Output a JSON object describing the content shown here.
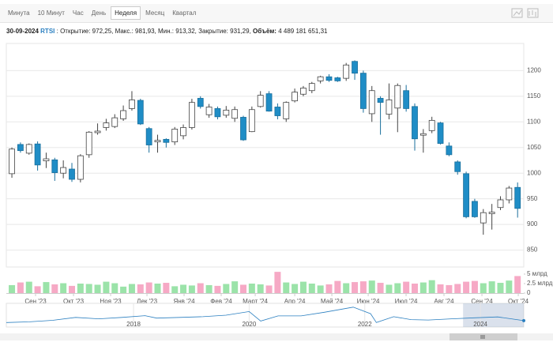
{
  "toolbar": {
    "tabs": [
      "Минута",
      "10 Минут",
      "Час",
      "День",
      "Неделя",
      "Месяц",
      "Квартал"
    ],
    "active_tab": 4
  },
  "info": {
    "date": "30-09-2024",
    "symbol": "RTSI",
    "details": ": Открытие: 972,25, Макс.: 981,93, Мин.: 913,32, Закрытие: 931,29,",
    "volume_label": "Объём:",
    "volume": "4 489 181 651,31"
  },
  "chart_data": [
    {
      "type": "candlestick",
      "categories": [
        null,
        null,
        null,
        null,
        null,
        null,
        null,
        null,
        null,
        null,
        null,
        null,
        null,
        null,
        null,
        null,
        null,
        null,
        null,
        null,
        null,
        null,
        null,
        null,
        null,
        null,
        null,
        null,
        null,
        null,
        null,
        null,
        null,
        null,
        null,
        null,
        null,
        null,
        null,
        null,
        null,
        null,
        null,
        null,
        null,
        null,
        null,
        null,
        null,
        null,
        null,
        null,
        null,
        null,
        null,
        null,
        null,
        null,
        null,
        null
      ],
      "open": [
        999,
        1056,
        1039,
        1057,
        1024,
        1026,
        1000,
        1008,
        988,
        1036,
        1079,
        1089,
        1091,
        1106,
        1126,
        1142,
        1087,
        1061,
        1066,
        1061,
        1073,
        1089,
        1146,
        1114,
        1126,
        1113,
        1107,
        1109,
        1081,
        1130,
        1155,
        1129,
        1106,
        1141,
        1154,
        1161,
        1180,
        1188,
        1186,
        1185,
        1218,
        1195,
        1116,
        1146,
        1115,
        1127,
        1161,
        1130,
        1074,
        1083,
        1098,
        1053,
        1022,
        999,
        945,
        903,
        921,
        933,
        948,
        972.25
      ],
      "high": [
        1050,
        1060,
        1058,
        1062,
        1040,
        1030,
        1025,
        1020,
        1037,
        1082,
        1097,
        1106,
        1115,
        1132,
        1160,
        1145,
        1090,
        1075,
        1068,
        1090,
        1095,
        1145,
        1150,
        1135,
        1130,
        1131,
        1130,
        1112,
        1130,
        1160,
        1160,
        1136,
        1140,
        1165,
        1170,
        1178,
        1190,
        1193,
        1188,
        1215,
        1220,
        1200,
        1170,
        1150,
        1175,
        1175,
        1172,
        1136,
        1086,
        1110,
        1100,
        1060,
        1025,
        1003,
        950,
        930,
        940,
        955,
        975,
        981.93
      ],
      "low": [
        991,
        1040,
        1036,
        1005,
        1010,
        985,
        990,
        983,
        982,
        1030,
        1075,
        1083,
        1088,
        1102,
        1122,
        1094,
        1040,
        1040,
        1050,
        1055,
        1066,
        1085,
        1126,
        1108,
        1105,
        1108,
        1100,
        1063,
        1080,
        1128,
        1120,
        1105,
        1100,
        1138,
        1150,
        1156,
        1175,
        1178,
        1178,
        1180,
        1182,
        1118,
        1100,
        1075,
        1105,
        1080,
        1120,
        1044,
        1040,
        1078,
        1056,
        1033,
        997,
        912,
        913,
        880,
        890,
        928,
        941,
        913.32
      ],
      "close": [
        1047,
        1044,
        1056,
        1016,
        1028,
        1001,
        1011,
        988,
        1034,
        1080,
        1082,
        1098,
        1108,
        1122,
        1143,
        1096,
        1055,
        1064,
        1060,
        1086,
        1089,
        1138,
        1130,
        1129,
        1110,
        1123,
        1124,
        1065,
        1124,
        1152,
        1121,
        1112,
        1138,
        1158,
        1166,
        1175,
        1188,
        1181,
        1180,
        1211,
        1195,
        1126,
        1161,
        1138,
        1143,
        1171,
        1126,
        1067,
        1077,
        1103,
        1058,
        1036,
        1003,
        915,
        915,
        923,
        924,
        948,
        971,
        931.29
      ],
      "volume": [
        2.1,
        2.8,
        3.0,
        1.8,
        2.9,
        2.3,
        2.6,
        1.9,
        2.5,
        2.4,
        2.2,
        3.0,
        2.6,
        1.7,
        2.4,
        2.3,
        2.8,
        2.5,
        2.7,
        1.8,
        2.2,
        2.0,
        2.6,
        2.1,
        1.9,
        2.4,
        3.1,
        2.2,
        2.5,
        2.3,
        2.0,
        5.6,
        2.8,
        2.4,
        3.0,
        2.5,
        2.0,
        2.3,
        3.2,
        2.6,
        2.9,
        3.1,
        3.3,
        2.7,
        2.2,
        2.6,
        3.0,
        2.5,
        2.8,
        3.4,
        2.3,
        2.1,
        2.4,
        3.0,
        3.2,
        2.6,
        3.1,
        2.7,
        3.3,
        4.49
      ],
      "up_color": "#ffffff",
      "down_color": "#1f8dc6",
      "volume_up_color": "#9be3a9",
      "volume_down_color": "#f6a9c5",
      "xlim": [
        -0.65,
        59.72
      ],
      "xticks": [
        {
          "value": 2.76,
          "label": "Сен '23"
        },
        {
          "value": 7.19,
          "label": "Окт '23"
        },
        {
          "value": 11.52,
          "label": "Ноя '23"
        },
        {
          "value": 15.76,
          "label": "Дек '23"
        },
        {
          "value": 20.09,
          "label": "Янв '24"
        },
        {
          "value": 24.42,
          "label": "Фев '24"
        },
        {
          "value": 28.39,
          "label": "Март '24"
        },
        {
          "value": 33.0,
          "label": "Апр '24"
        },
        {
          "value": 37.33,
          "label": "Май '24"
        },
        {
          "value": 41.57,
          "label": "Июн '24"
        },
        {
          "value": 45.99,
          "label": "Июл '24"
        },
        {
          "value": 50.41,
          "label": "Авг '24"
        },
        {
          "value": 54.84,
          "label": "Сен '24"
        },
        {
          "value": 59.08,
          "label": "Окт '24"
        }
      ],
      "ylim": [
        817,
        1253
      ],
      "yticks": [
        850,
        900,
        950,
        1000,
        1050,
        1100,
        1150,
        1200
      ],
      "grid": true,
      "volume_ylim": [
        0,
        6.25
      ],
      "volume_yticks": [
        {
          "value": 0,
          "label": "0"
        },
        {
          "value": 2.5,
          "label": "2.5 млрд"
        },
        {
          "value": 5,
          "label": "5 млрд"
        }
      ]
    },
    {
      "type": "line",
      "x": [
        2015.8,
        2016.2,
        2016.6,
        2017.0,
        2017.4,
        2017.8,
        2018.2,
        2018.4,
        2018.8,
        2019.2,
        2019.6,
        2020.0,
        2020.2,
        2020.5,
        2020.9,
        2021.3,
        2021.8,
        2022.1,
        2022.2,
        2022.5,
        2022.8,
        2023.1,
        2023.5,
        2023.9,
        2024.3,
        2024.75
      ],
      "values": [
        800,
        850,
        950,
        1150,
        1050,
        1150,
        1270,
        1100,
        1150,
        1200,
        1300,
        1550,
        900,
        1250,
        1250,
        1500,
        1850,
        1400,
        800,
        1200,
        1000,
        970,
        1050,
        1120,
        1180,
        930
      ],
      "color": "#2a7fc0",
      "xlim": [
        2015.8,
        2024.75
      ],
      "ylim": [
        600,
        2000
      ],
      "xticks": [
        2018,
        2020,
        2022,
        2024
      ],
      "selection": [
        2023.7,
        2024.75
      ]
    }
  ]
}
